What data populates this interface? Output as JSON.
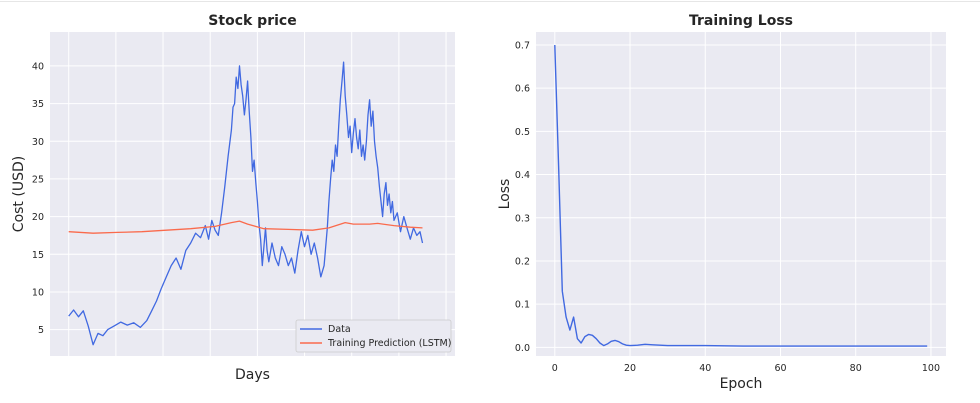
{
  "chart_data": [
    {
      "type": "line",
      "title": "Stock price",
      "xlabel": "Days",
      "ylabel": "Cost (USD)",
      "xlim": [
        -230,
        4750
      ],
      "ylim": [
        1.5,
        44.5
      ],
      "yticks": [
        5,
        10,
        15,
        20,
        25,
        30,
        35,
        40
      ],
      "xticks_grid": [
        0,
        580,
        1160,
        1740,
        2320,
        2900,
        3480,
        4060,
        4640
      ],
      "grid": true,
      "legend": "bottom-right",
      "series": [
        {
          "name": "Data",
          "color": "#4169e1",
          "points": [
            [
              0,
              6.8
            ],
            [
              60,
              7.6
            ],
            [
              120,
              6.7
            ],
            [
              180,
              7.5
            ],
            [
              240,
              5.5
            ],
            [
              300,
              3.0
            ],
            [
              360,
              4.5
            ],
            [
              420,
              4.2
            ],
            [
              480,
              5.0
            ],
            [
              560,
              5.5
            ],
            [
              640,
              6.0
            ],
            [
              720,
              5.6
            ],
            [
              800,
              5.9
            ],
            [
              880,
              5.3
            ],
            [
              960,
              6.2
            ],
            [
              1020,
              7.5
            ],
            [
              1080,
              8.8
            ],
            [
              1140,
              10.5
            ],
            [
              1200,
              12.0
            ],
            [
              1260,
              13.5
            ],
            [
              1320,
              14.5
            ],
            [
              1380,
              13.0
            ],
            [
              1440,
              15.5
            ],
            [
              1500,
              16.5
            ],
            [
              1560,
              17.8
            ],
            [
              1620,
              17.2
            ],
            [
              1680,
              18.8
            ],
            [
              1720,
              17.0
            ],
            [
              1760,
              19.5
            ],
            [
              1800,
              18.2
            ],
            [
              1840,
              17.5
            ],
            [
              1880,
              20.5
            ],
            [
              1920,
              24.0
            ],
            [
              1960,
              28.0
            ],
            [
              2000,
              31.5
            ],
            [
              2020,
              34.5
            ],
            [
              2040,
              35.0
            ],
            [
              2060,
              38.5
            ],
            [
              2080,
              37.0
            ],
            [
              2100,
              40.0
            ],
            [
              2120,
              37.5
            ],
            [
              2140,
              36.0
            ],
            [
              2160,
              33.5
            ],
            [
              2180,
              35.5
            ],
            [
              2200,
              38.0
            ],
            [
              2220,
              34.0
            ],
            [
              2240,
              30.5
            ],
            [
              2260,
              26.0
            ],
            [
              2280,
              27.5
            ],
            [
              2300,
              24.5
            ],
            [
              2320,
              22.0
            ],
            [
              2340,
              19.0
            ],
            [
              2360,
              17.0
            ],
            [
              2380,
              13.5
            ],
            [
              2400,
              16.0
            ],
            [
              2420,
              18.5
            ],
            [
              2440,
              15.5
            ],
            [
              2460,
              14.0
            ],
            [
              2500,
              16.5
            ],
            [
              2540,
              14.5
            ],
            [
              2580,
              13.5
            ],
            [
              2620,
              16.0
            ],
            [
              2660,
              15.0
            ],
            [
              2700,
              13.5
            ],
            [
              2740,
              14.5
            ],
            [
              2780,
              12.5
            ],
            [
              2820,
              15.5
            ],
            [
              2860,
              18.0
            ],
            [
              2900,
              16.0
            ],
            [
              2940,
              17.5
            ],
            [
              2980,
              15.0
            ],
            [
              3020,
              16.5
            ],
            [
              3060,
              14.5
            ],
            [
              3100,
              12.0
            ],
            [
              3140,
              13.5
            ],
            [
              3180,
              18.5
            ],
            [
              3200,
              22.0
            ],
            [
              3220,
              25.0
            ],
            [
              3240,
              27.5
            ],
            [
              3260,
              26.0
            ],
            [
              3280,
              29.5
            ],
            [
              3300,
              28.0
            ],
            [
              3320,
              32.0
            ],
            [
              3340,
              35.5
            ],
            [
              3360,
              38.0
            ],
            [
              3380,
              40.5
            ],
            [
              3400,
              36.0
            ],
            [
              3420,
              33.5
            ],
            [
              3440,
              30.5
            ],
            [
              3460,
              32.0
            ],
            [
              3480,
              28.5
            ],
            [
              3500,
              31.0
            ],
            [
              3520,
              33.0
            ],
            [
              3540,
              30.5
            ],
            [
              3560,
              29.0
            ],
            [
              3580,
              31.5
            ],
            [
              3600,
              28.0
            ],
            [
              3620,
              29.5
            ],
            [
              3640,
              27.5
            ],
            [
              3660,
              30.0
            ],
            [
              3680,
              33.5
            ],
            [
              3700,
              35.5
            ],
            [
              3720,
              32.0
            ],
            [
              3740,
              34.0
            ],
            [
              3760,
              30.0
            ],
            [
              3780,
              28.0
            ],
            [
              3800,
              26.5
            ],
            [
              3820,
              24.0
            ],
            [
              3840,
              22.0
            ],
            [
              3860,
              20.0
            ],
            [
              3880,
              23.0
            ],
            [
              3900,
              24.5
            ],
            [
              3920,
              21.5
            ],
            [
              3940,
              23.0
            ],
            [
              3960,
              20.5
            ],
            [
              3980,
              22.0
            ],
            [
              4000,
              19.5
            ],
            [
              4040,
              20.5
            ],
            [
              4080,
              18.0
            ],
            [
              4120,
              20.0
            ],
            [
              4160,
              18.5
            ],
            [
              4200,
              17.0
            ],
            [
              4240,
              18.5
            ],
            [
              4280,
              17.5
            ],
            [
              4320,
              18.0
            ],
            [
              4350,
              16.5
            ]
          ]
        },
        {
          "name": "Training Prediction (LSTM)",
          "color": "#fa6a4c",
          "points": [
            [
              0,
              18.0
            ],
            [
              300,
              17.8
            ],
            [
              600,
              17.9
            ],
            [
              900,
              18.0
            ],
            [
              1200,
              18.2
            ],
            [
              1500,
              18.4
            ],
            [
              1800,
              18.7
            ],
            [
              2000,
              19.2
            ],
            [
              2100,
              19.4
            ],
            [
              2200,
              19.0
            ],
            [
              2400,
              18.4
            ],
            [
              2700,
              18.3
            ],
            [
              3000,
              18.2
            ],
            [
              3200,
              18.5
            ],
            [
              3400,
              19.2
            ],
            [
              3500,
              19.0
            ],
            [
              3700,
              19.0
            ],
            [
              3800,
              19.1
            ],
            [
              4000,
              18.8
            ],
            [
              4200,
              18.6
            ],
            [
              4350,
              18.5
            ]
          ]
        }
      ]
    },
    {
      "type": "line",
      "title": "Training Loss",
      "xlabel": "Epoch",
      "ylabel": "Loss",
      "xlim": [
        -5,
        104
      ],
      "ylim": [
        -0.02,
        0.73
      ],
      "xticks": [
        0,
        20,
        40,
        60,
        80,
        100
      ],
      "yticks": [
        0.0,
        0.1,
        0.2,
        0.3,
        0.4,
        0.5,
        0.6,
        0.7
      ],
      "grid": true,
      "series": [
        {
          "color": "#4169e1",
          "points": [
            [
              0,
              0.7
            ],
            [
              1,
              0.42
            ],
            [
              2,
              0.13
            ],
            [
              3,
              0.07
            ],
            [
              4,
              0.04
            ],
            [
              5,
              0.07
            ],
            [
              6,
              0.02
            ],
            [
              7,
              0.01
            ],
            [
              8,
              0.025
            ],
            [
              9,
              0.03
            ],
            [
              10,
              0.028
            ],
            [
              11,
              0.02
            ],
            [
              12,
              0.01
            ],
            [
              13,
              0.004
            ],
            [
              14,
              0.008
            ],
            [
              15,
              0.014
            ],
            [
              16,
              0.016
            ],
            [
              17,
              0.013
            ],
            [
              18,
              0.008
            ],
            [
              19,
              0.005
            ],
            [
              20,
              0.004
            ],
            [
              22,
              0.005
            ],
            [
              24,
              0.007
            ],
            [
              26,
              0.006
            ],
            [
              28,
              0.005
            ],
            [
              30,
              0.004
            ],
            [
              35,
              0.004
            ],
            [
              40,
              0.004
            ],
            [
              50,
              0.003
            ],
            [
              60,
              0.003
            ],
            [
              70,
              0.003
            ],
            [
              80,
              0.003
            ],
            [
              90,
              0.003
            ],
            [
              99,
              0.003
            ]
          ]
        }
      ]
    }
  ],
  "legend": {
    "data_label": "Data",
    "pred_label": "Training Prediction (LSTM)"
  }
}
